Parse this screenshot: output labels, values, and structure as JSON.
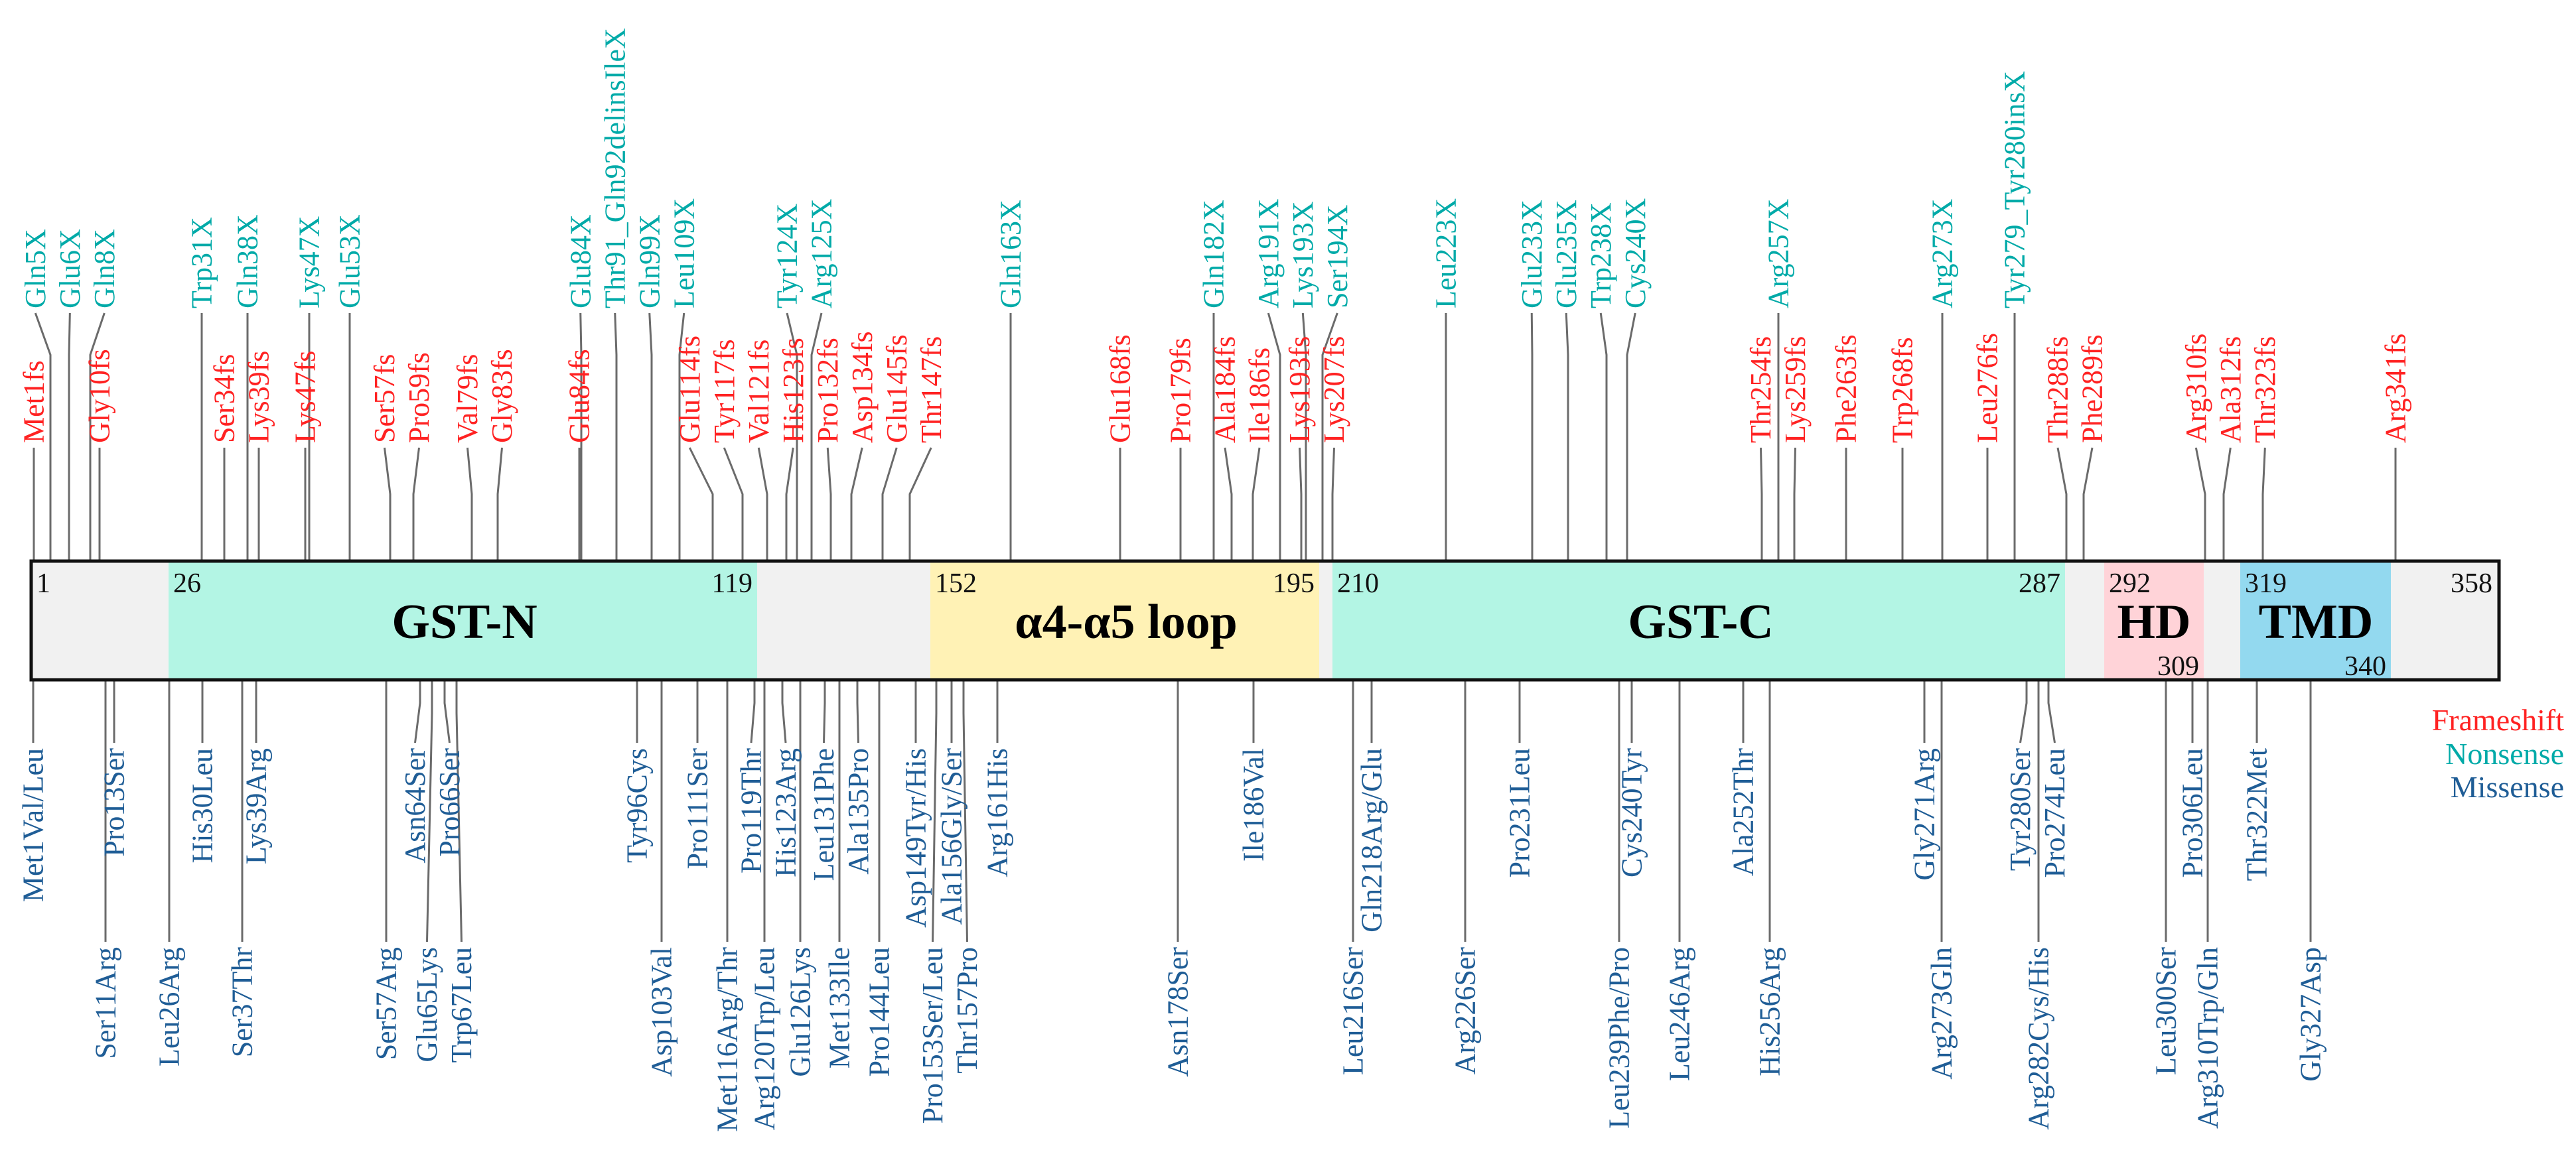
{
  "protein": {
    "start_label": "1",
    "end_label": "358",
    "domains": [
      {
        "key": "gst_n",
        "name": "GST-N",
        "start": "26",
        "end": "119",
        "color": "#b3f5e4"
      },
      {
        "key": "loop",
        "name": "α4-α5 loop",
        "start": "152",
        "end": "195",
        "color": "#fff2b5"
      },
      {
        "key": "gst_c",
        "name": "GST-C",
        "start": "210",
        "end": "287",
        "color": "#b3f5e4"
      },
      {
        "key": "hd",
        "name": "HD",
        "start": "292",
        "end": "309",
        "color": "#ffd3d8"
      },
      {
        "key": "tmd",
        "name": "TMD",
        "start": "319",
        "end": "340",
        "color": "#93d9ef"
      }
    ],
    "background_color": "#f1f1f1"
  },
  "legend": {
    "frameshift": "Frameshift",
    "nonsense": "Nonsense",
    "missense": "Missense",
    "colors": {
      "frameshift": "#ff2222",
      "nonsense": "#00aaa8",
      "missense": "#1f5d96"
    }
  },
  "frameshift": [
    "Met1fs",
    "Gly10fs",
    "Ser34fs",
    "Lys39fs",
    "Lys47fs",
    "Ser57fs",
    "Pro59fs",
    "Val79fs",
    "Gly83fs",
    "Glu84fs",
    "Glu114fs",
    "Tyr117fs",
    "Val121fs",
    "His123fs",
    "Pro132fs",
    "Asp134fs",
    "Glu145fs",
    "Thr147fs",
    "Glu168fs",
    "Pro179fs",
    "Ala184fs",
    "Ile186fs",
    "Lys193fs",
    "Lys207fs",
    "Thr254fs",
    "Lys259fs",
    "Phe263fs",
    "Trp268fs",
    "Leu276fs",
    "Thr288fs",
    "Phe289fs",
    "Arg310fs",
    "Ala312fs",
    "Thr323fs",
    "Arg341fs"
  ],
  "nonsense": [
    "Gln5X",
    "Glu6X",
    "Gln8X",
    "Trp31X",
    "Gln38X",
    "Lys47X",
    "Glu53X",
    "Glu84X",
    "Thr91_Gln92delinsIleX",
    "Gln99X",
    "Leu109X",
    "Tyr124X",
    "Arg125X",
    "Gln163X",
    "Gln182X",
    "Arg191X",
    "Lys193X",
    "Ser194X",
    "Leu223X",
    "Glu233X",
    "Glu235X",
    "Trp238X",
    "Cys240X",
    "Arg257X",
    "Arg273X",
    "Tyr279_Tyr280insX"
  ],
  "missense": [
    "Met1Val/Leu",
    "Ser11Arg",
    "Pro13Ser",
    "Leu26Arg",
    "His30Leu",
    "Ser37Thr",
    "Lys39Arg",
    "Ser57Arg",
    "Asn64Ser",
    "Glu65Lys",
    "Pro66Ser",
    "Trp67Leu",
    "Tyr96Cys",
    "Asp103Val",
    "Pro111Ser",
    "Met116Arg/Thr",
    "Pro119Thr",
    "Arg120Trp/Leu",
    "His123Arg",
    "Glu126Lys",
    "Leu131Phe",
    "Met133Ile",
    "Ala135Pro",
    "Pro144Leu",
    "Asp149Tyr/His",
    "Pro153Ser/Leu",
    "Ala156Gly/Ser",
    "Thr157Pro",
    "Arg161His",
    "Asn178Ser",
    "Ile186Val",
    "Leu216Ser",
    "Gln218Arg/Glu",
    "Arg226Ser",
    "Pro231Leu",
    "Leu239Phe/Pro",
    "Cys240Tyr",
    "Leu246Arg",
    "Ala252Thr",
    "His256Arg",
    "Gly271Arg",
    "Arg273Gln",
    "Tyr280Ser",
    "Arg282Cys/His",
    "Pro274Leu",
    "Leu300Ser",
    "Pro306Leu",
    "Arg310Trp/Gln",
    "Thr322Met",
    "Gly327Asp"
  ]
}
